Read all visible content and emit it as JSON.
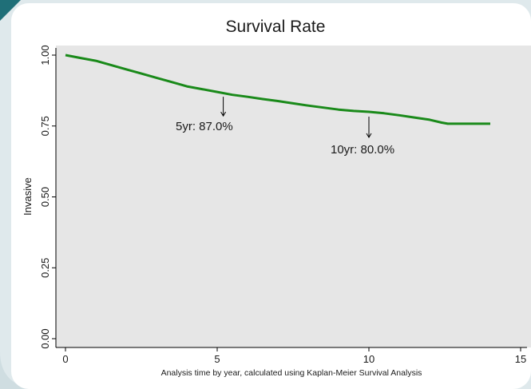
{
  "colors": {
    "page_background": "#dfe9ec",
    "chart_background": "#ffffff",
    "plot_background": "#e6e6e6",
    "frame_accent": "#1f6f78",
    "curve": "#1a8a1a",
    "text": "#1a1a1a"
  },
  "chart_data": {
    "type": "line",
    "title": "Survival Rate",
    "xlabel": "Analysis time by year, calculated using Kaplan-Meier Survival Analysis",
    "ylabel": "Invasive",
    "xlim": [
      -0.3,
      15.2
    ],
    "ylim": [
      -0.03,
      1.03
    ],
    "xticks": [
      0,
      5,
      10,
      15
    ],
    "xtick_labels": [
      "0",
      "5",
      "10",
      "15"
    ],
    "yticks": [
      0,
      0.25,
      0.5,
      0.75,
      1.0
    ],
    "ytick_labels": [
      "0.00",
      "0.25",
      "0.50",
      "0.75",
      "1.00"
    ],
    "grid": false,
    "series": [
      {
        "x": [
          0,
          0.5,
          1,
          1.5,
          2,
          2.5,
          3,
          3.5,
          4,
          4.5,
          5,
          5.5,
          6,
          6.5,
          7,
          7.5,
          8,
          8.5,
          9,
          9.5,
          10,
          10.5,
          11,
          11.5,
          12,
          12.4,
          12.6,
          13,
          13.5,
          14
        ],
        "y": [
          1.0,
          0.99,
          0.98,
          0.965,
          0.95,
          0.935,
          0.92,
          0.905,
          0.89,
          0.88,
          0.87,
          0.86,
          0.853,
          0.845,
          0.838,
          0.83,
          0.822,
          0.815,
          0.808,
          0.803,
          0.8,
          0.795,
          0.788,
          0.78,
          0.772,
          0.762,
          0.758,
          0.758,
          0.758,
          0.758
        ]
      }
    ],
    "annotations": [
      {
        "text": "5yr: 87.0%",
        "x": 5.2,
        "y": 0.87
      },
      {
        "text": "10yr: 80.0%",
        "x": 10.0,
        "y": 0.8
      }
    ]
  }
}
